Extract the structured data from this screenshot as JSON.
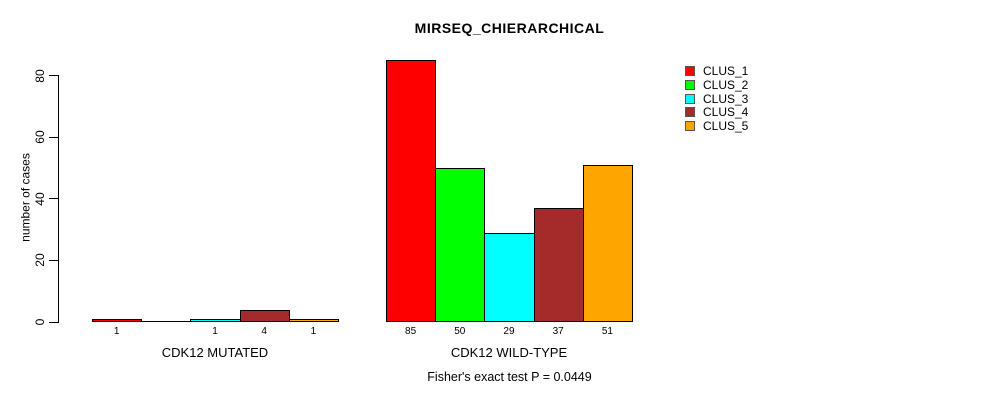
{
  "chart_data": {
    "type": "bar",
    "title": "MIRSEQ_CHIERARCHICAL",
    "ylabel": "number of cases",
    "xlabel": "",
    "caption": "Fisher's exact test P = 0.0449",
    "ylim": [
      0,
      85
    ],
    "yticks": [
      "0",
      "20",
      "40",
      "60",
      "80"
    ],
    "grid": false,
    "legend_position": "top-right",
    "categories": [
      "CDK12 MUTATED",
      "CDK12 WILD-TYPE"
    ],
    "series": [
      {
        "name": "CLUS_1",
        "color": "#FF0000",
        "values": [
          1,
          85
        ]
      },
      {
        "name": "CLUS_2",
        "color": "#00FF00",
        "values": [
          0,
          50
        ]
      },
      {
        "name": "CLUS_3",
        "color": "#00FFFF",
        "values": [
          1,
          29
        ]
      },
      {
        "name": "CLUS_4",
        "color": "#A52A2A",
        "values": [
          4,
          37
        ]
      },
      {
        "name": "CLUS_5",
        "color": "#FFA500",
        "values": [
          1,
          51
        ]
      }
    ],
    "bar_value_labels": [
      [
        "1",
        "",
        "1",
        "4",
        "1"
      ],
      [
        "85",
        "50",
        "29",
        "37",
        "51"
      ]
    ]
  }
}
